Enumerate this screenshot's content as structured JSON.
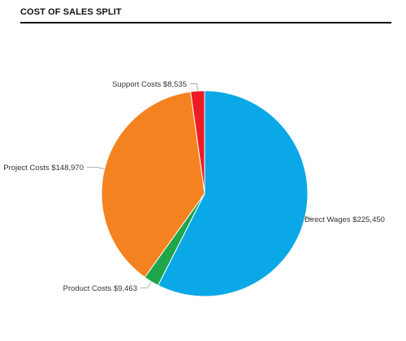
{
  "widget": {
    "title": "COST OF SALES SPLIT"
  },
  "colors": {
    "title_rule": "#111111",
    "leader_line": "#9a9a9a",
    "slice_border": "#ffffff"
  },
  "chart_data": {
    "type": "pie",
    "title": "COST OF SALES SPLIT",
    "currency_prefix": "$",
    "legend": "none",
    "slices": [
      {
        "name": "Direct Wages",
        "value": 225450,
        "label": "Direct Wages $225,450",
        "color": "#0aa8e6"
      },
      {
        "name": "Product Costs",
        "value": 9463,
        "label": "Product Costs $9,463",
        "color": "#1ea64a"
      },
      {
        "name": "Project Costs",
        "value": 148970,
        "label": "Project Costs $148,970",
        "color": "#f58220"
      },
      {
        "name": "Support Costs",
        "value": 8535,
        "label": "Support Costs $8,535",
        "color": "#ee1c25"
      }
    ]
  }
}
